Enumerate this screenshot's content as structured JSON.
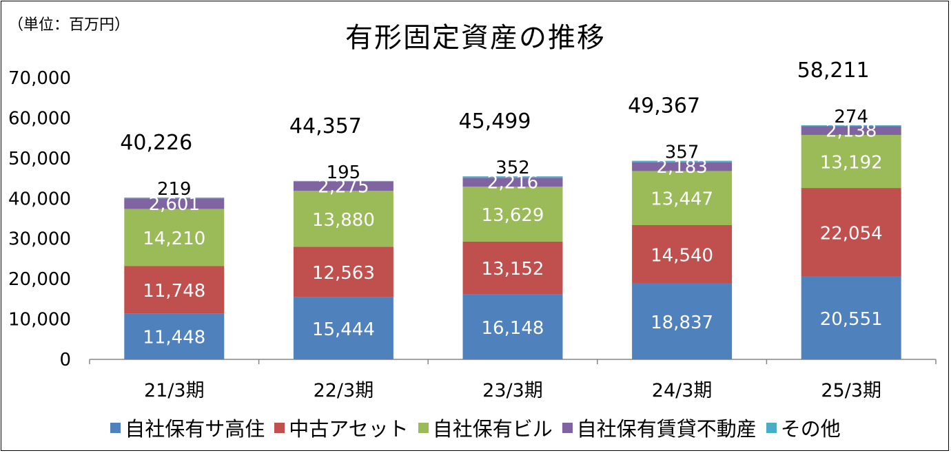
{
  "unit_label": "（単位：百万円）",
  "chart_data": {
    "type": "bar",
    "stacked": true,
    "title": "有形固定資産の推移",
    "categories": [
      "21/3期",
      "22/3期",
      "23/3期",
      "24/3期",
      "25/3期"
    ],
    "series": [
      {
        "name": "自社保有サ高住",
        "color": "#4F81BD",
        "values": [
          11448,
          15444,
          16148,
          18837,
          20551
        ],
        "labels": [
          "11,448",
          "15,444",
          "16,148",
          "18,837",
          "20,551"
        ]
      },
      {
        "name": "中古アセット",
        "color": "#C0504D",
        "values": [
          11748,
          12563,
          13152,
          14540,
          22054
        ],
        "labels": [
          "11,748",
          "12,563",
          "13,152",
          "14,540",
          "22,054"
        ]
      },
      {
        "name": "自社保有ビル",
        "color": "#9BBB59",
        "values": [
          14210,
          13880,
          13629,
          13447,
          13192
        ],
        "labels": [
          "14,210",
          "13,880",
          "13,629",
          "13,447",
          "13,192"
        ]
      },
      {
        "name": "自社保有賃貸不動産",
        "color": "#8064A2",
        "values": [
          2601,
          2275,
          2216,
          2183,
          2138
        ],
        "labels": [
          "2,601",
          "2,275",
          "2,216",
          "2,183",
          "2,138"
        ]
      },
      {
        "name": "その他",
        "color": "#4BACC6",
        "values": [
          219,
          195,
          352,
          357,
          274
        ],
        "labels": [
          "219",
          "195",
          "352",
          "357",
          "274"
        ]
      }
    ],
    "totals": [
      40226,
      44357,
      45499,
      49367,
      58211
    ],
    "total_labels": [
      "40,226",
      "44,357",
      "45,499",
      "49,367",
      "58,211"
    ],
    "ylim": [
      0,
      70000
    ],
    "yticks": [
      "0",
      "10,000",
      "20,000",
      "30,000",
      "40,000",
      "50,000",
      "60,000",
      "70,000"
    ],
    "grid": false,
    "legend_position": "bottom"
  }
}
